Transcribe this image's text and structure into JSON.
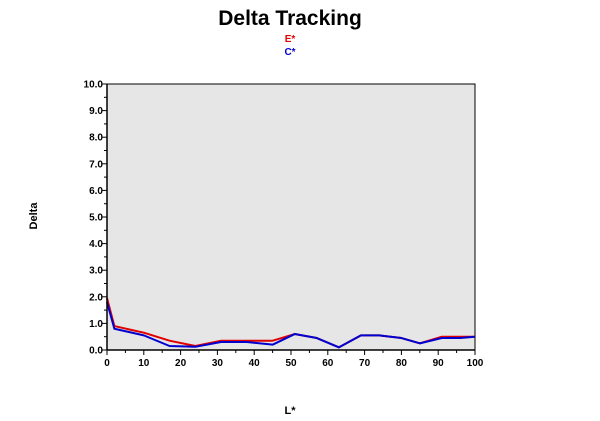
{
  "chart_data": {
    "type": "line",
    "title": "Delta Tracking",
    "xlabel": "L*",
    "ylabel": "Delta",
    "xlim": [
      0,
      100
    ],
    "ylim": [
      0,
      10
    ],
    "x_ticks": [
      "0",
      "10",
      "20",
      "30",
      "40",
      "50",
      "60",
      "70",
      "80",
      "90",
      "100"
    ],
    "y_ticks": [
      "0.0",
      "1.0",
      "2.0",
      "3.0",
      "4.0",
      "5.0",
      "6.0",
      "7.0",
      "8.0",
      "9.0",
      "10.0"
    ],
    "grid": false,
    "plot_background": "#e6e6e6",
    "legend_position": "top-center",
    "series": [
      {
        "name": "E*",
        "color": "#e00000",
        "x": [
          0,
          2,
          10,
          17,
          24,
          31,
          38,
          45,
          51,
          57,
          63,
          69,
          74,
          80,
          85,
          91,
          96,
          100
        ],
        "y": [
          1.95,
          0.9,
          0.65,
          0.35,
          0.15,
          0.35,
          0.35,
          0.35,
          0.6,
          0.45,
          0.1,
          0.55,
          0.55,
          0.45,
          0.25,
          0.5,
          0.5,
          0.5
        ]
      },
      {
        "name": "C*",
        "color": "#0000d0",
        "x": [
          0,
          2,
          10,
          17,
          24,
          31,
          38,
          45,
          51,
          57,
          63,
          69,
          74,
          80,
          85,
          91,
          96,
          100
        ],
        "y": [
          1.8,
          0.8,
          0.55,
          0.15,
          0.12,
          0.3,
          0.3,
          0.2,
          0.6,
          0.45,
          0.1,
          0.55,
          0.55,
          0.45,
          0.25,
          0.45,
          0.45,
          0.5
        ]
      }
    ]
  }
}
